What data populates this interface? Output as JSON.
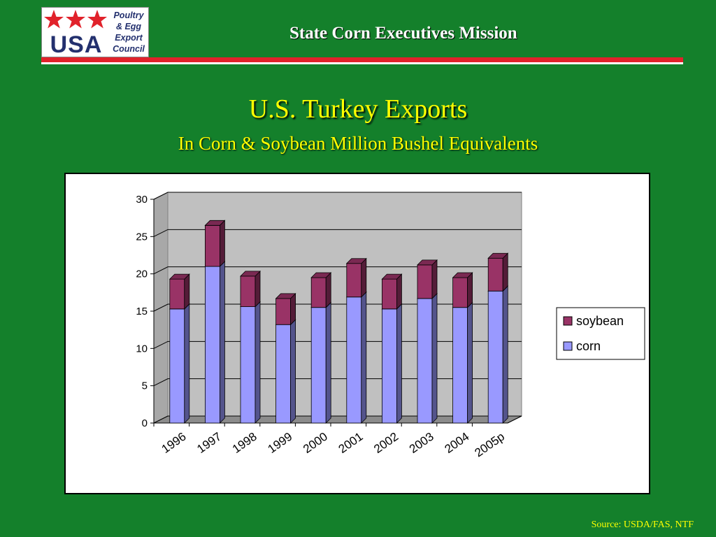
{
  "header": {
    "title": "State Corn Executives Mission",
    "logo": {
      "word": "USA",
      "lines": [
        "Poultry",
        "& Egg",
        "Export",
        "Council"
      ],
      "star_color": "#e1222b",
      "text_color": "#23306e"
    }
  },
  "slide": {
    "title": "U.S. Turkey Exports",
    "subtitle": "In Corn & Soybean Million Bushel Equivalents",
    "source": "Source: USDA/FAS, NTF"
  },
  "chart_data": {
    "type": "bar",
    "stacked": true,
    "categories": [
      "1996",
      "1997",
      "1998",
      "1999",
      "2000",
      "2001",
      "2002",
      "2003",
      "2004",
      "2005p"
    ],
    "series": [
      {
        "name": "corn",
        "color": "#9999ff",
        "values": [
          15.3,
          21.0,
          15.6,
          13.2,
          15.5,
          16.9,
          15.3,
          16.7,
          15.5,
          17.7
        ]
      },
      {
        "name": "soybean",
        "color": "#993366",
        "values": [
          4.0,
          5.5,
          4.1,
          3.5,
          4.0,
          4.5,
          4.0,
          4.5,
          4.0,
          4.4
        ]
      }
    ],
    "yticks": [
      "0",
      "5",
      "10",
      "15",
      "20",
      "25",
      "30"
    ],
    "ylim": [
      0,
      30
    ],
    "grid": true,
    "legend_position": "right",
    "legend": [
      "soybean",
      "corn"
    ]
  }
}
